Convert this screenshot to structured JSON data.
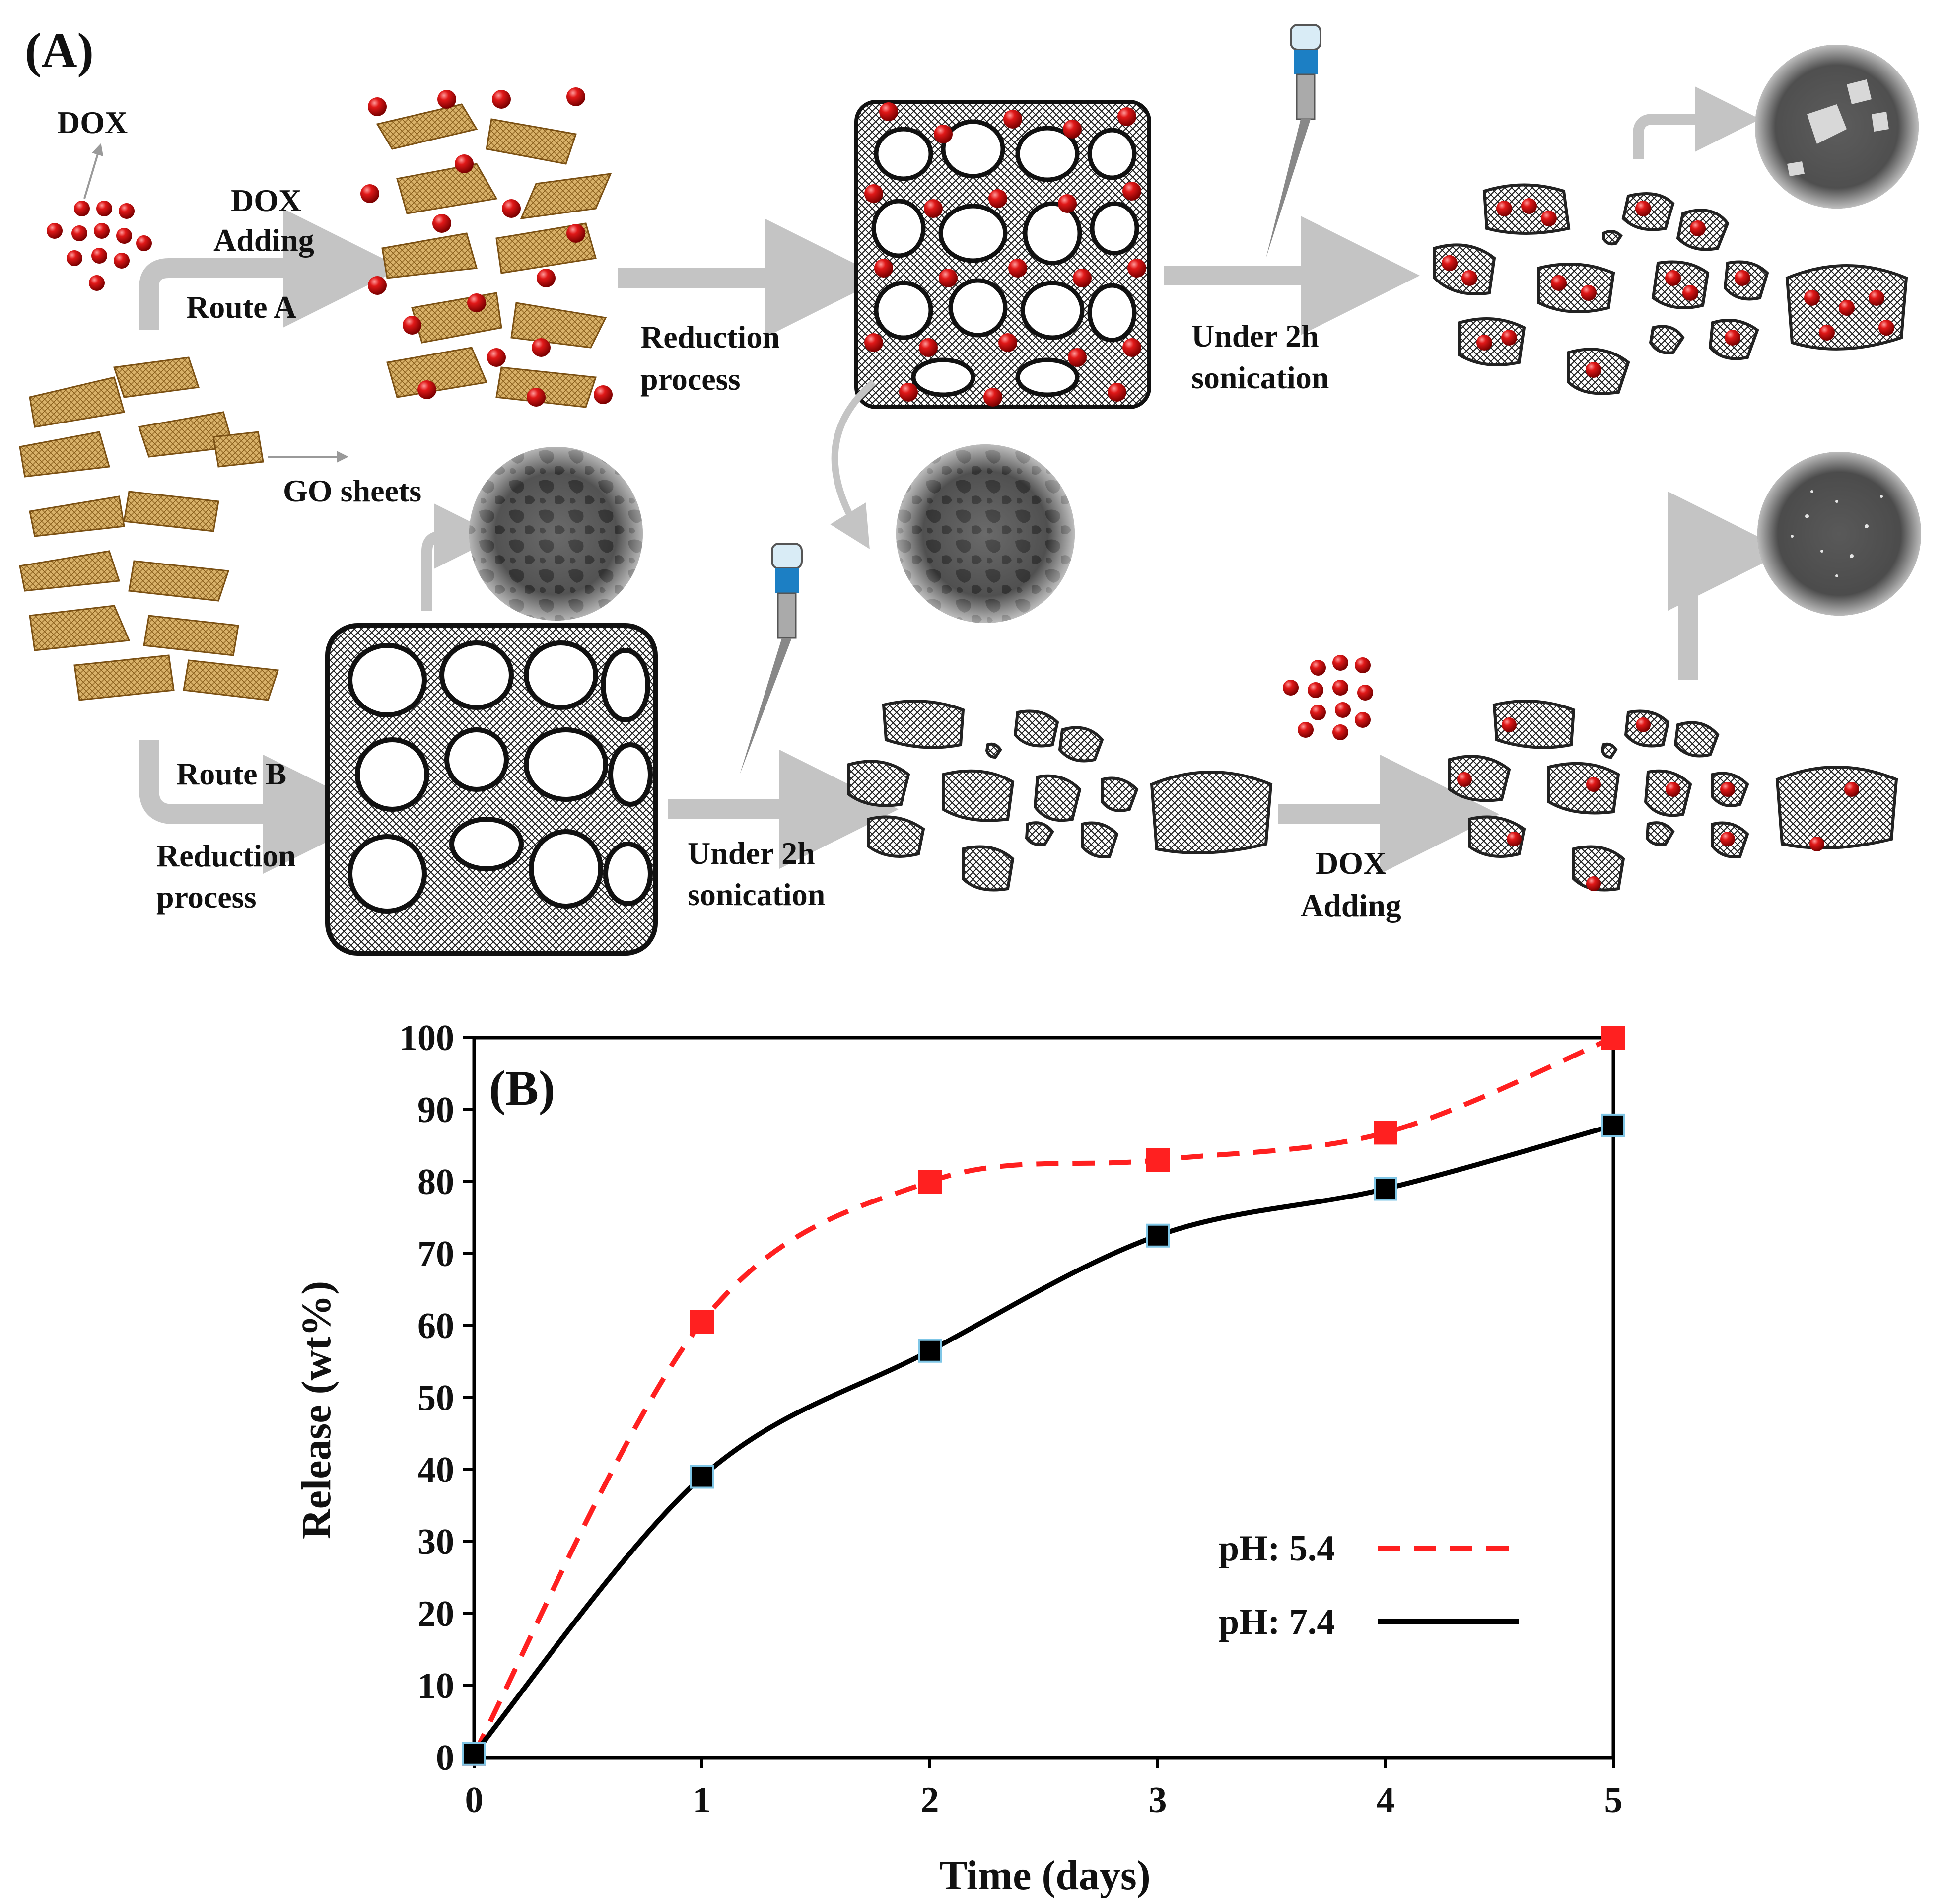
{
  "panel_a": {
    "label": "(A)",
    "dox_label": "DOX",
    "dox_adding_1": "DOX",
    "dox_adding_2": "Adding",
    "route_a": "Route A",
    "reduction_a_1": "Reduction",
    "reduction_a_2": "process",
    "sonication_a_1": "Under 2h",
    "sonication_a_2": "sonication",
    "go_sheets": "GO sheets",
    "route_b": "Route B",
    "reduction_b_1": "Reduction",
    "reduction_b_2": "process",
    "sonication_b_1": "Under 2h",
    "sonication_b_2": "sonication",
    "dox_adding_b_1": "DOX",
    "dox_adding_b_2": "Adding",
    "colors": {
      "dox": "#d81414",
      "go": "#c8963e",
      "mesh": "#222222",
      "arrow": "#c4c4c4"
    }
  },
  "chart_data": {
    "type": "line",
    "panel_label": "(B)",
    "xlabel": "Time (days)",
    "ylabel": "Release (wt%)",
    "x": [
      0,
      1,
      2,
      3,
      4,
      5
    ],
    "xlim": [
      0,
      5
    ],
    "ylim": [
      0,
      100
    ],
    "xticks": [
      0,
      1,
      2,
      3,
      4,
      5
    ],
    "yticks": [
      0,
      10,
      20,
      30,
      40,
      50,
      60,
      70,
      80,
      90,
      100
    ],
    "grid": false,
    "legend_position": "lower-right",
    "series": [
      {
        "name": "pH: 5.4",
        "values": [
          0.5,
          60.5,
          80,
          83,
          86.8,
          100
        ],
        "color": "#ff2020",
        "line_style": "dashed",
        "marker": "square"
      },
      {
        "name": "pH: 7.4",
        "values": [
          0.5,
          39,
          56.5,
          72.5,
          79,
          87.8
        ],
        "color": "#000000",
        "line_style": "solid",
        "marker": "square"
      }
    ]
  }
}
